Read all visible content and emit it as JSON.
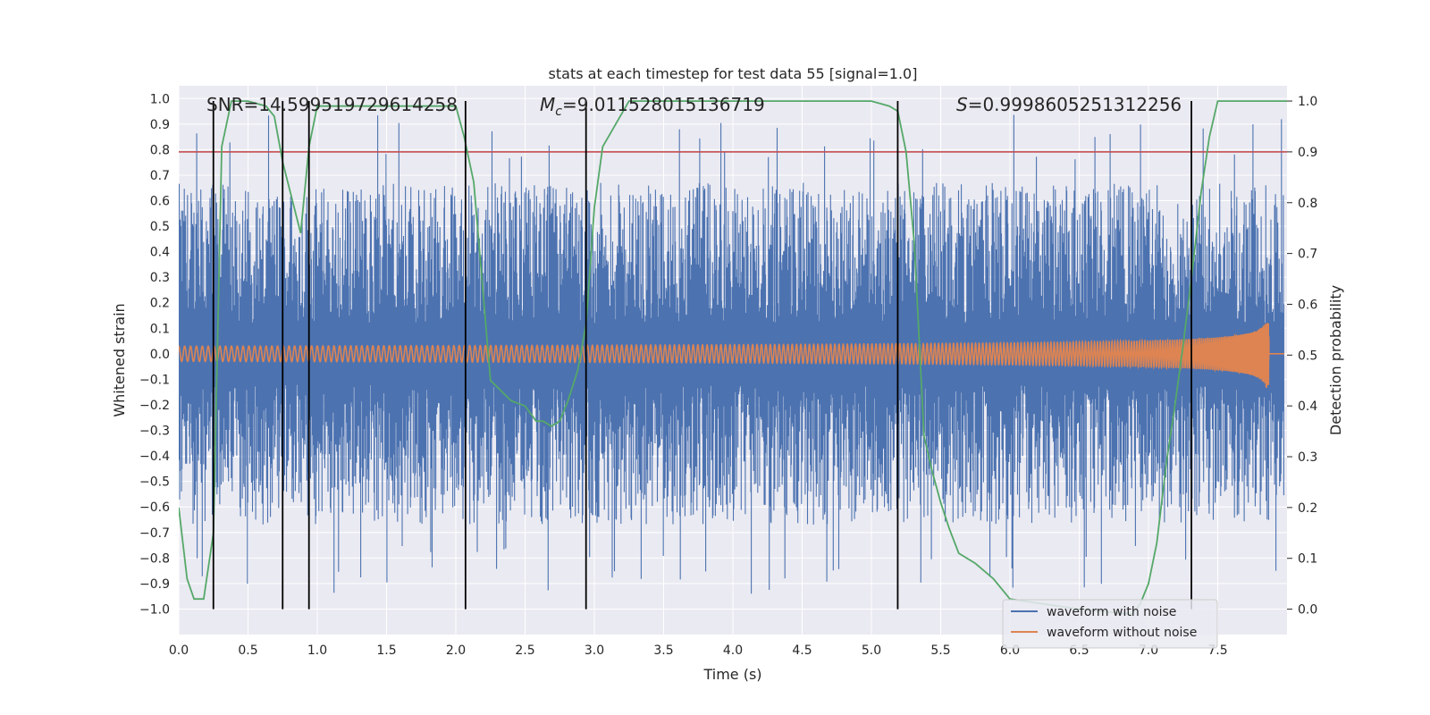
{
  "chart_data": {
    "type": "line",
    "title": "stats at each timestep for test data 55 [signal=1.0]",
    "xlabel": "Time (s)",
    "ylabel": "Whitened strain",
    "ylabel_right": "Detection probability",
    "xlim": [
      0.0,
      8.0
    ],
    "ylim": [
      -1.1,
      1.05
    ],
    "ylim_right": [
      -0.05,
      1.03
    ],
    "x_ticks": [
      "0.0",
      "0.5",
      "1.0",
      "1.5",
      "2.0",
      "2.5",
      "3.0",
      "3.5",
      "4.0",
      "4.5",
      "5.0",
      "5.5",
      "6.0",
      "6.5",
      "7.0",
      "7.5"
    ],
    "y_ticks": [
      "1.0",
      "0.9",
      "0.8",
      "0.7",
      "0.6",
      "0.5",
      "0.4",
      "0.3",
      "0.2",
      "0.1",
      "0.0",
      "−0.1",
      "−0.2",
      "−0.3",
      "−0.4",
      "−0.5",
      "−0.6",
      "−0.7",
      "−0.8",
      "−0.9",
      "−1.0"
    ],
    "y_ticks_right": [
      "1.0",
      "0.9",
      "0.8",
      "0.7",
      "0.6",
      "0.5",
      "0.4",
      "0.3",
      "0.2",
      "0.1",
      "0.0"
    ],
    "grid": true,
    "legend_placement": "lower-right",
    "annotations": {
      "snr": "SNR=14.599519729614258",
      "mc_value": "=9.011528015136719",
      "s_value": "=0.9998605251312256"
    },
    "threshold": {
      "value": 0.9,
      "axis": "right",
      "color": "#c44e52"
    },
    "vertical_lines": [
      0.25,
      0.75,
      0.94,
      2.07,
      2.94,
      5.19,
      7.31
    ],
    "series": [
      {
        "name": "waveform with noise",
        "color": "#4c72b0",
        "axis": "left",
        "kind": "noise",
        "amplitude_max": 0.94
      },
      {
        "name": "waveform without noise",
        "color": "#dd8452",
        "axis": "left",
        "kind": "chirp",
        "start_amplitude": 0.03,
        "merger_time": 7.87,
        "merger_amplitude": 0.55
      },
      {
        "axis": "right",
        "color": "#55a868",
        "kind": "probability",
        "x": [
          0.0,
          0.06,
          0.11,
          0.18,
          0.25,
          0.31,
          0.38,
          0.5,
          0.63,
          0.69,
          0.75,
          0.88,
          0.94,
          1.0,
          1.25,
          1.5,
          1.75,
          2.0,
          2.06,
          2.13,
          2.25,
          2.4,
          2.5,
          2.58,
          2.63,
          2.69,
          2.75,
          2.81,
          2.88,
          2.94,
          3.0,
          3.06,
          3.25,
          3.5,
          4.0,
          4.5,
          5.0,
          5.13,
          5.19,
          5.25,
          5.31,
          5.38,
          5.44,
          5.5,
          5.56,
          5.63,
          5.75,
          5.88,
          6.0,
          6.5,
          6.88,
          6.94,
          6.97,
          7.0,
          7.06,
          7.13,
          7.19,
          7.25,
          7.31,
          7.38,
          7.44,
          7.5,
          7.75,
          8.0
        ],
        "y": [
          0.2,
          0.06,
          0.02,
          0.02,
          0.15,
          0.91,
          1.0,
          1.0,
          0.99,
          0.97,
          0.88,
          0.74,
          0.91,
          0.99,
          0.99,
          0.99,
          0.99,
          0.99,
          0.93,
          0.84,
          0.45,
          0.41,
          0.4,
          0.37,
          0.37,
          0.36,
          0.37,
          0.41,
          0.47,
          0.56,
          0.79,
          0.91,
          1.0,
          1.0,
          1.0,
          1.0,
          1.0,
          0.99,
          0.98,
          0.9,
          0.72,
          0.34,
          0.27,
          0.21,
          0.16,
          0.11,
          0.09,
          0.06,
          0.02,
          0.0,
          -0.01,
          0.01,
          0.03,
          0.05,
          0.13,
          0.29,
          0.4,
          0.52,
          0.65,
          0.82,
          0.93,
          1.0,
          1.0,
          1.0
        ]
      }
    ]
  }
}
